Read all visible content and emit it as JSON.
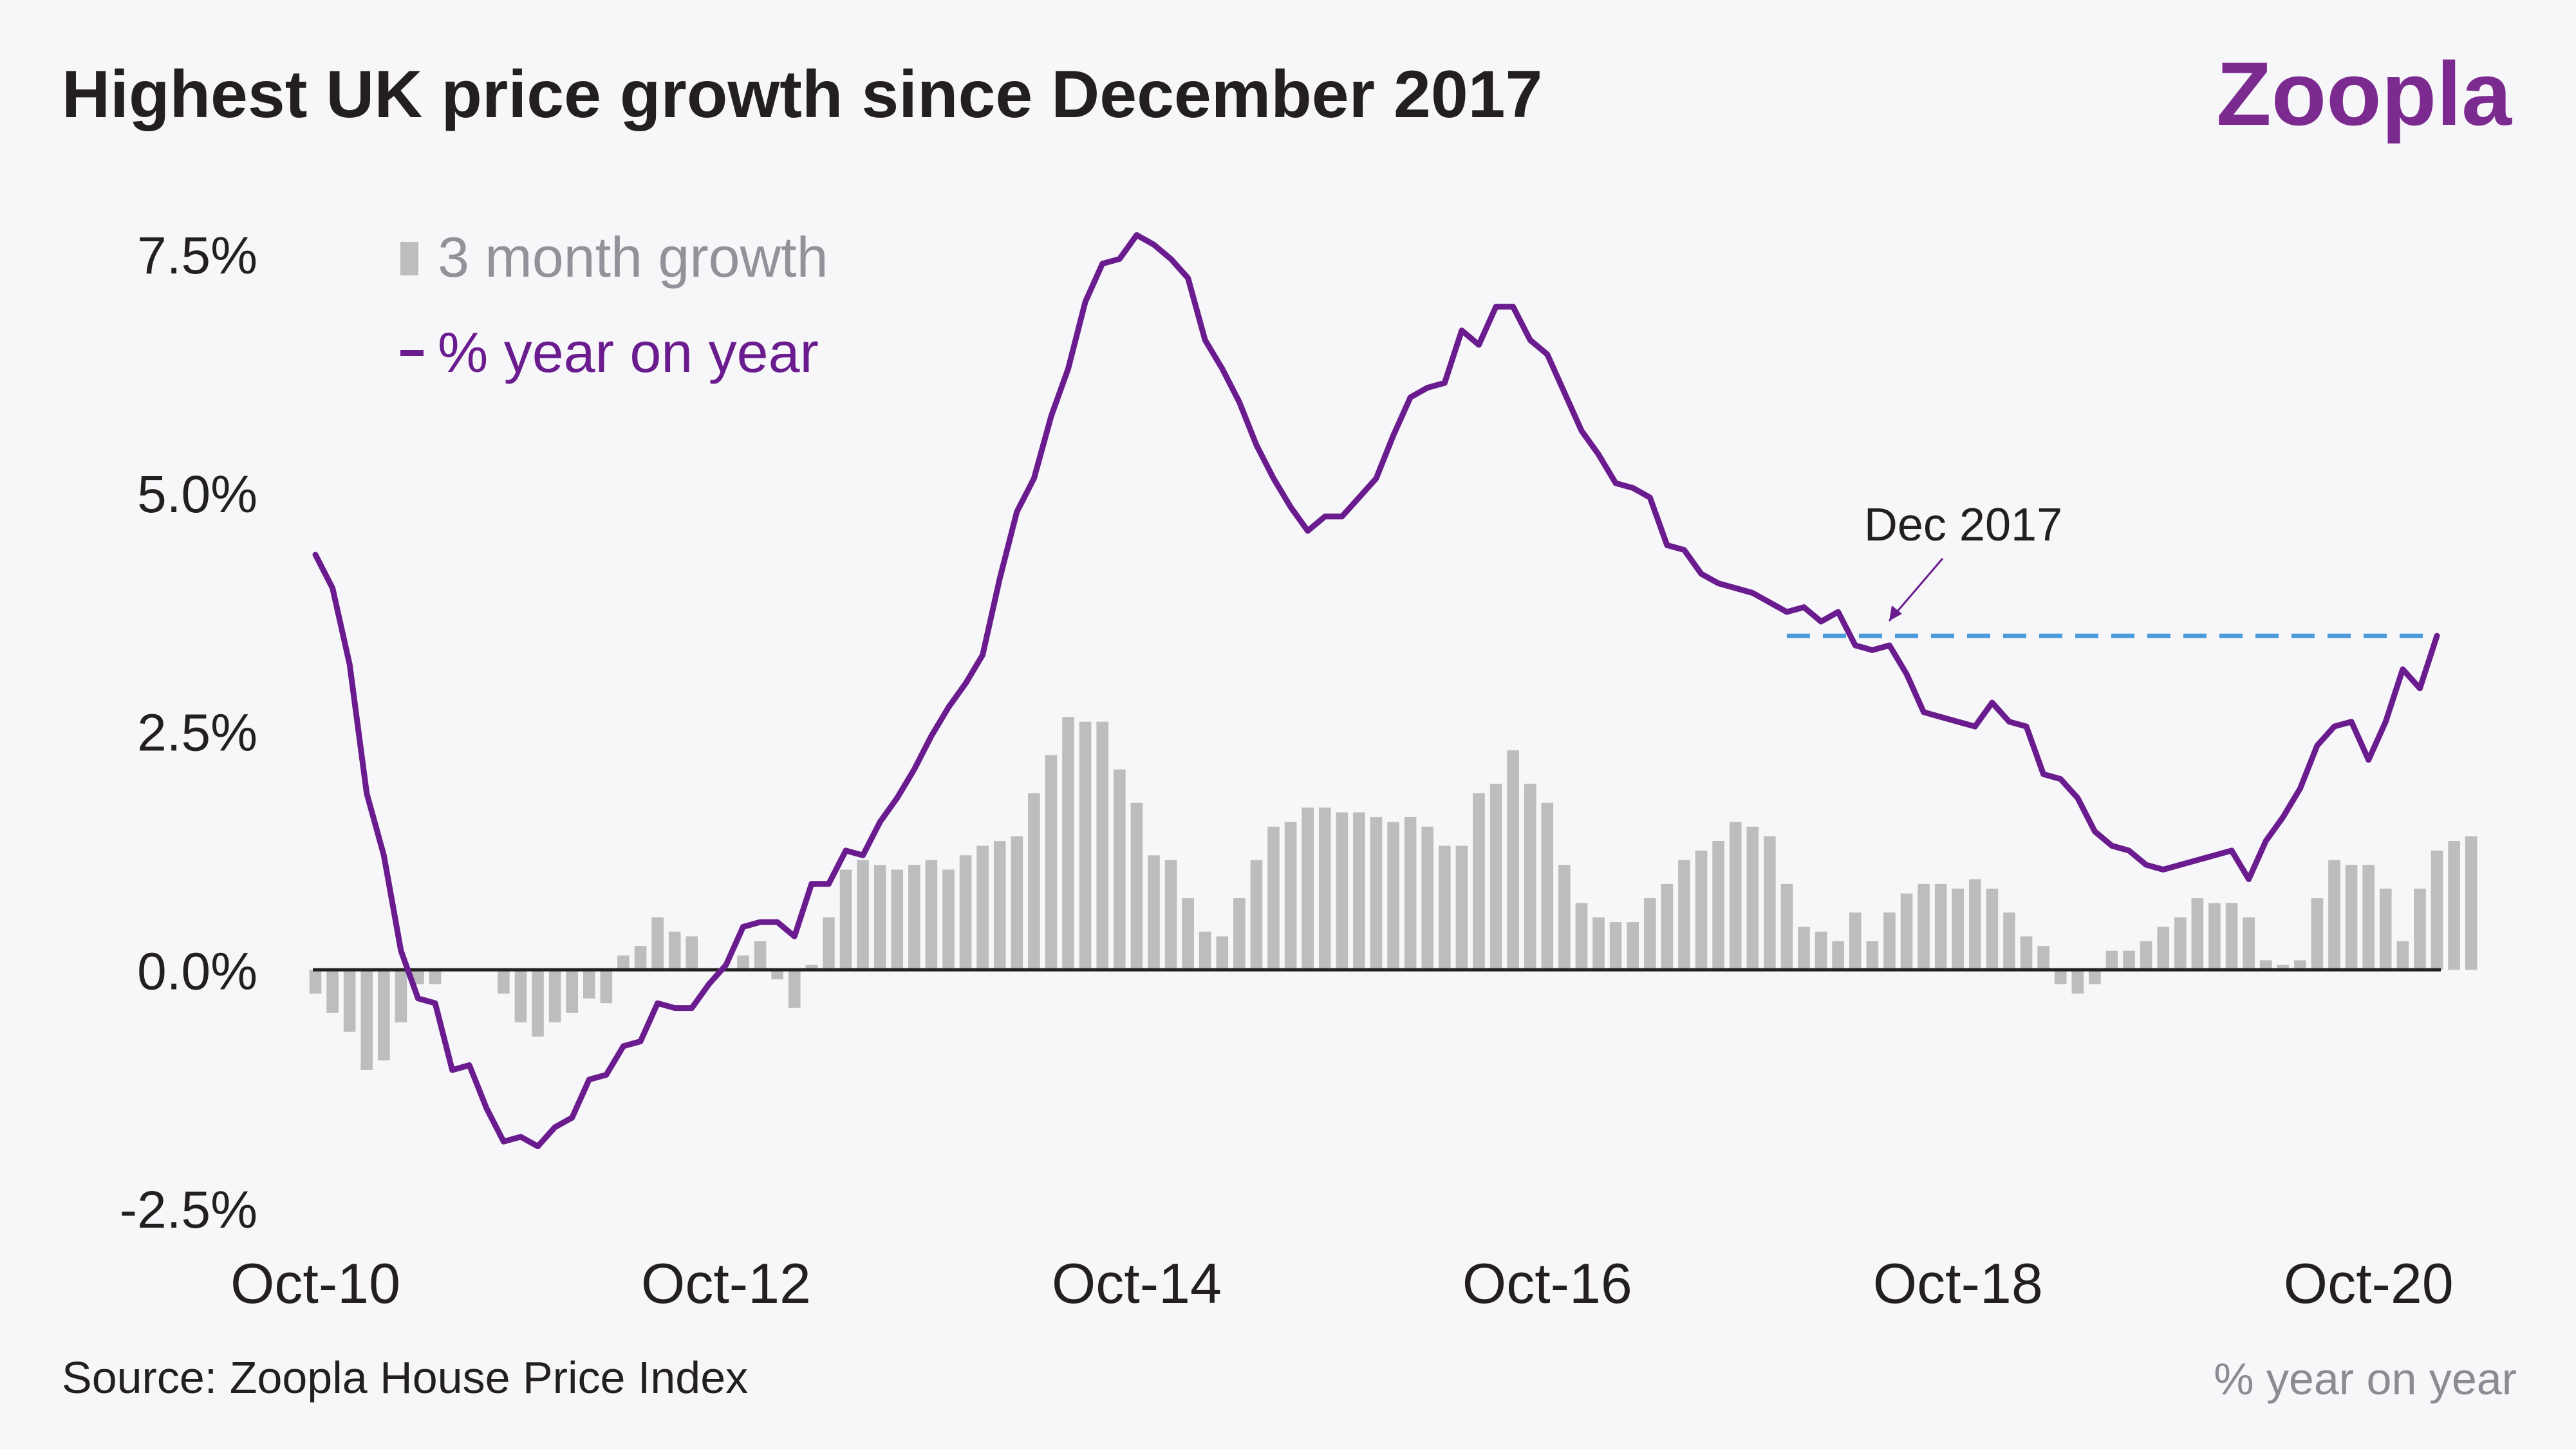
{
  "header": {
    "title": "Highest UK price growth since December 2017",
    "brand": "Zoopla"
  },
  "footer": {
    "source": "Source: Zoopla House Price Index",
    "note": "% year on year"
  },
  "colors": {
    "line": "#6a1c8f",
    "bars": "#bdbdbd",
    "reference": "#4a9bdb",
    "zero_line": "#231f20",
    "background": "#f7f6f9",
    "brand": "#7b2a90"
  },
  "chart_data": {
    "type": "bar",
    "x_ticks": [
      "Oct-10",
      "Oct-12",
      "Oct-14",
      "Oct-16",
      "Oct-18",
      "Oct-20"
    ],
    "y_ticks": [
      "7.5%",
      "5.0%",
      "2.5%",
      "0.0%",
      "-2.5%"
    ],
    "ylim": [
      -2.5,
      7.5
    ],
    "legend": [
      {
        "name": "3 month growth",
        "kind": "bar"
      },
      {
        "name": "% year on year",
        "kind": "line"
      }
    ],
    "annotation": {
      "label": "Dec 2017",
      "value": 3.5
    },
    "series": [
      {
        "name": "3 month growth",
        "kind": "bar",
        "values": [
          -0.25,
          -0.45,
          -0.65,
          -1.05,
          -0.95,
          -0.55,
          -0.15,
          -0.15,
          0.0,
          0.0,
          0.0,
          -0.25,
          -0.55,
          -0.7,
          -0.55,
          -0.45,
          -0.3,
          -0.35,
          0.15,
          0.25,
          0.55,
          0.4,
          0.35,
          0.0,
          0.0,
          0.15,
          0.3,
          -0.1,
          -0.4,
          0.05,
          0.55,
          1.05,
          1.15,
          1.1,
          1.05,
          1.1,
          1.15,
          1.05,
          1.2,
          1.3,
          1.35,
          1.4,
          1.85,
          2.25,
          2.65,
          2.6,
          2.6,
          2.1,
          1.75,
          1.2,
          1.15,
          0.75,
          0.4,
          0.35,
          0.75,
          1.15,
          1.5,
          1.55,
          1.7,
          1.7,
          1.65,
          1.65,
          1.6,
          1.55,
          1.6,
          1.5,
          1.3,
          1.3,
          1.85,
          1.95,
          2.3,
          1.95,
          1.75,
          1.1,
          0.7,
          0.55,
          0.5,
          0.5,
          0.75,
          0.9,
          1.15,
          1.25,
          1.35,
          1.55,
          1.5,
          1.4,
          0.9,
          0.45,
          0.4,
          0.3,
          0.6,
          0.3,
          0.6,
          0.8,
          0.9,
          0.9,
          0.85,
          0.95,
          0.85,
          0.6,
          0.35,
          0.25,
          -0.15,
          -0.25,
          -0.15,
          0.2,
          0.2,
          0.3,
          0.45,
          0.55,
          0.75,
          0.7,
          0.7,
          0.55,
          0.1,
          0.05,
          0.1,
          0.75,
          1.15,
          1.1,
          1.1,
          0.85,
          0.3,
          0.85,
          1.25,
          1.35,
          1.4
        ]
      },
      {
        "name": "% year on year",
        "kind": "line",
        "values": [
          4.35,
          4.0,
          3.2,
          1.85,
          1.2,
          0.2,
          -0.3,
          -0.35,
          -1.05,
          -1.0,
          -1.45,
          -1.8,
          -1.75,
          -1.85,
          -1.65,
          -1.55,
          -1.15,
          -1.1,
          -0.8,
          -0.75,
          -0.35,
          -0.4,
          -0.4,
          -0.15,
          0.05,
          0.45,
          0.5,
          0.5,
          0.35,
          0.9,
          0.9,
          1.25,
          1.2,
          1.55,
          1.8,
          2.1,
          2.45,
          2.75,
          3.0,
          3.3,
          4.1,
          4.8,
          5.15,
          5.8,
          6.3,
          7.0,
          7.4,
          7.45,
          7.7,
          7.6,
          7.45,
          7.25,
          6.6,
          6.3,
          5.95,
          5.5,
          5.15,
          4.85,
          4.6,
          4.75,
          4.75,
          4.95,
          5.15,
          5.6,
          6.0,
          6.1,
          6.15,
          6.7,
          6.55,
          6.95,
          6.95,
          6.6,
          6.45,
          6.05,
          5.65,
          5.4,
          5.1,
          5.05,
          4.95,
          4.45,
          4.4,
          4.15,
          4.05,
          4.0,
          3.95,
          3.85,
          3.75,
          3.8,
          3.65,
          3.75,
          3.4,
          3.35,
          3.4,
          3.1,
          2.7,
          2.65,
          2.6,
          2.55,
          2.8,
          2.6,
          2.55,
          2.05,
          2.0,
          1.8,
          1.45,
          1.3,
          1.25,
          1.1,
          1.05,
          1.1,
          1.15,
          1.2,
          1.25,
          0.95,
          1.35,
          1.6,
          1.9,
          2.35,
          2.55,
          2.6,
          2.2,
          2.6,
          3.15,
          2.95,
          3.5
        ]
      }
    ]
  }
}
